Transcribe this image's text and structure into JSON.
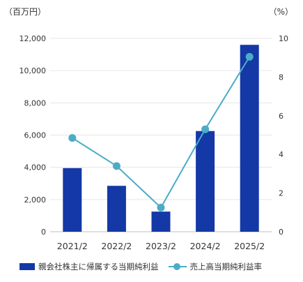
{
  "chart_data": {
    "type": "bar",
    "categories": [
      "2021/2",
      "2022/2",
      "2023/2",
      "2024/2",
      "2025/2"
    ],
    "series": [
      {
        "name": "親会社株主に帰属する当期純利益",
        "type": "bar",
        "axis": "left",
        "color": "#1438a6",
        "values": [
          3950,
          2850,
          1250,
          6250,
          11600
        ]
      },
      {
        "name": "売上高当期純利益率",
        "type": "line",
        "axis": "right",
        "color": "#4bacc6",
        "values": [
          4.85,
          3.4,
          1.25,
          5.3,
          9.05
        ]
      }
    ],
    "y_left": {
      "unit": "（百万円）",
      "ylim": [
        0,
        12000
      ],
      "ticks": [
        "0",
        "2,000",
        "4,000",
        "6,000",
        "8,000",
        "10,000",
        "12,000"
      ]
    },
    "y_right": {
      "unit": "（%）",
      "ylim": [
        0,
        10
      ],
      "ticks": [
        "0",
        "2",
        "4",
        "6",
        "8",
        "10"
      ]
    },
    "grid": true,
    "legend": "bottom"
  }
}
